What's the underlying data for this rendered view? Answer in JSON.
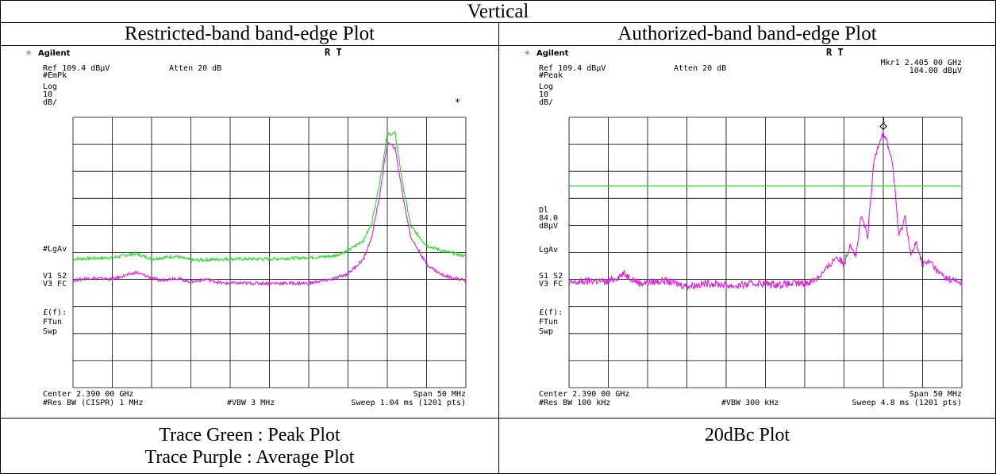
{
  "table": {
    "title": "Vertical",
    "left_header": "Restricted-band band-edge Plot",
    "right_header": "Authorized-band band-edge Plot",
    "left_caption_1": "Trace Green : Peak Plot",
    "left_caption_2": "Trace Purple : Average Plot",
    "right_caption": "20dBc Plot"
  },
  "colors": {
    "peak_trace": "#22dd22",
    "avg_trace": "#e020e0",
    "display_line": "#22dd22",
    "grid": "#000000",
    "logo": "#5566cc"
  },
  "chart_data": [
    {
      "type": "line",
      "brand": "Agilent",
      "status": "R T",
      "ref_label": "Ref 109.4 dBµV",
      "atten_label": "Atten 20 dB",
      "detector": "#EmPk",
      "scale_lines": [
        "Log",
        "10",
        "dB/"
      ],
      "avg_label": "#LgAv",
      "trace_lines": [
        "V1 S2",
        "V3 FC"
      ],
      "tune_lines": [
        "£(f):",
        "FTun",
        "Swp"
      ],
      "marker_symbol": "*",
      "center_label": "Center 2.390 00 GHz",
      "span_label": "Span 50 MHz",
      "rbw_label": "#Res BW (CISPR) 1 MHz",
      "vbw_label": "#VBW 3 MHz",
      "sweep_label": "Sweep 1.04 ms (1201 pts)",
      "x_range_mhz": [
        2365,
        2415
      ],
      "y_range_dbuv": [
        9.4,
        109.4
      ],
      "grid": true,
      "series": [
        {
          "name": "Trace Green : Peak Plot",
          "color": "#22dd22",
          "x": [
            2365,
            2370,
            2373,
            2375,
            2378,
            2380,
            2385,
            2390,
            2395,
            2398,
            2400,
            2402,
            2403,
            2404,
            2405,
            2406,
            2407,
            2408,
            2410,
            2412,
            2415
          ],
          "y": [
            57.0,
            57.5,
            59.0,
            57.0,
            58.0,
            56.5,
            57.0,
            57.0,
            57.5,
            58.0,
            60.0,
            64.0,
            70.0,
            85.0,
            103.0,
            103.5,
            84.0,
            69.0,
            62.0,
            60.0,
            58.0
          ]
        },
        {
          "name": "Trace Purple : Average Plot",
          "color": "#e020e0",
          "x": [
            2365,
            2367,
            2370,
            2373,
            2376,
            2378,
            2380,
            2382,
            2384,
            2387,
            2390,
            2395,
            2398,
            2400,
            2402,
            2403,
            2404,
            2405,
            2406,
            2407,
            2408,
            2410,
            2412,
            2415
          ],
          "y": [
            49.0,
            50.0,
            49.5,
            52.0,
            49.0,
            50.0,
            48.5,
            49.5,
            48.0,
            48.0,
            48.0,
            48.0,
            49.5,
            51.5,
            57.0,
            65.0,
            80.0,
            100.0,
            98.0,
            80.0,
            65.0,
            55.0,
            51.0,
            49.0
          ]
        }
      ]
    },
    {
      "type": "line",
      "brand": "Agilent",
      "status": "R T",
      "marker_readout_1": "Mkr1  2.405 00 GHz",
      "marker_readout_2": "104.00 dBµV",
      "ref_label": "Ref 109.4 dBµV",
      "atten_label": "Atten 20 dB",
      "detector": "#Peak",
      "scale_lines": [
        "Log",
        "10",
        "dB/"
      ],
      "dl_lines": [
        "Dl",
        "84.0",
        "dBµV"
      ],
      "avg_label": "LgAv",
      "trace_lines": [
        "S1  S2",
        "V3  FC"
      ],
      "tune_lines": [
        "£(f):",
        "FTun",
        "Swp"
      ],
      "marker_label": "1",
      "center_label": "Center 2.390 00 GHz",
      "span_label": "Span 50 MHz",
      "rbw_label": "#Res BW 100 kHz",
      "vbw_label": "#VBW 300 kHz",
      "sweep_label": "Sweep 4.8 ms (1201 pts)",
      "x_range_mhz": [
        2365,
        2415
      ],
      "y_range_dbuv": [
        9.4,
        109.4
      ],
      "grid": true,
      "display_line_dbuv": 84.0,
      "marker": {
        "x": 2405,
        "y": 104.0
      },
      "series": [
        {
          "name": "",
          "color": "#e020e0",
          "x": [
            2365,
            2368,
            2370,
            2372,
            2374,
            2377,
            2380,
            2383,
            2386,
            2389,
            2392,
            2395,
            2396,
            2397,
            2398,
            2399,
            2400,
            2400.8,
            2401.5,
            2402.2,
            2403,
            2403.8,
            2404.4,
            2405,
            2405.6,
            2406.2,
            2407,
            2407.8,
            2408.5,
            2409.2,
            2410,
            2411,
            2412,
            2413,
            2414,
            2415
          ],
          "y": [
            48.0,
            49.0,
            48.5,
            51.5,
            48.0,
            49.0,
            47.0,
            48.0,
            47.0,
            48.0,
            47.5,
            48.0,
            49.0,
            51.0,
            54.0,
            58.0,
            55.0,
            63.0,
            58.0,
            73.0,
            65.0,
            93.0,
            100.0,
            104.0,
            99.0,
            92.0,
            65.0,
            73.0,
            58.0,
            63.0,
            55.0,
            56.0,
            52.0,
            50.0,
            49.0,
            48.0
          ]
        }
      ]
    }
  ]
}
